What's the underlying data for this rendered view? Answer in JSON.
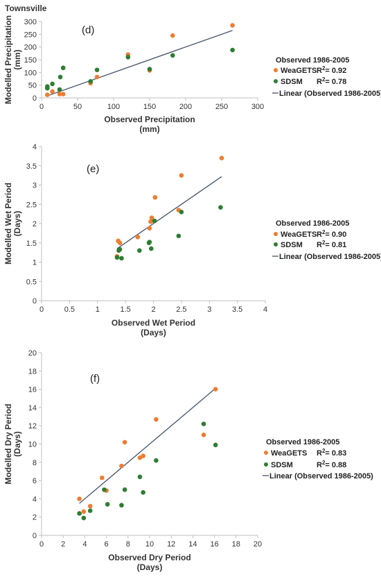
{
  "title": "Townsville",
  "colors": {
    "weagets": "#ED7D31",
    "sdsm": "#2E7D32",
    "linear": "#44546A",
    "axis": "#BFBFBF"
  },
  "chart_data": [
    {
      "type": "scatter",
      "panel_label": "(d)",
      "xlabel": "Observed Precipitation",
      "xlabel_unit": "(mm)",
      "ylabel": "Modelled Precipitation",
      "ylabel_unit": "(mm)",
      "xlim": [
        0,
        300
      ],
      "ylim": [
        0,
        300
      ],
      "xticks": [
        0,
        50,
        100,
        150,
        200,
        250,
        300
      ],
      "yticks": [
        0,
        50,
        100,
        150,
        200,
        250,
        300
      ],
      "legend": {
        "title": "Observed 1986-2005",
        "linear_label": "Linear (Observed 1986-2005)"
      },
      "series": [
        {
          "name": "WeaGETS",
          "r2": "0.92",
          "points": [
            [
              8,
              12
            ],
            [
              15,
              25
            ],
            [
              25,
              15
            ],
            [
              30,
              15
            ],
            [
              68,
              58
            ],
            [
              77,
              82
            ],
            [
              120,
              170
            ],
            [
              150,
              108
            ],
            [
              182,
              245
            ],
            [
              265,
              285
            ]
          ]
        },
        {
          "name": "SDSM",
          "r2": "0.78",
          "points": [
            [
              8,
              38
            ],
            [
              8,
              45
            ],
            [
              15,
              55
            ],
            [
              25,
              33
            ],
            [
              26,
              82
            ],
            [
              30,
              118
            ],
            [
              68,
              65
            ],
            [
              77,
              110
            ],
            [
              120,
              160
            ],
            [
              150,
              113
            ],
            [
              182,
              167
            ],
            [
              265,
              188
            ]
          ]
        }
      ],
      "trendline": [
        [
          8,
          8
        ],
        [
          265,
          265
        ]
      ]
    },
    {
      "type": "scatter",
      "panel_label": "(e)",
      "xlabel": "Observed Wet Period",
      "xlabel_unit": "(Days)",
      "ylabel": "Modelled Wet Period",
      "ylabel_unit": "(Days)",
      "xlim": [
        0,
        4
      ],
      "ylim": [
        0,
        4
      ],
      "xticks": [
        0,
        0.5,
        1,
        1.5,
        2,
        2.5,
        3,
        3.5,
        4
      ],
      "yticks": [
        0,
        0.5,
        1,
        1.5,
        2,
        2.5,
        3,
        3.5,
        4
      ],
      "legend": {
        "title": "Observed 1986-2005",
        "linear_label": "Linear (Observed 1986-2005)"
      },
      "series": [
        {
          "name": "WeaGETS",
          "r2": "0.90",
          "points": [
            [
              1.35,
              1.15
            ],
            [
              1.37,
              1.55
            ],
            [
              1.4,
              1.5
            ],
            [
              1.72,
              1.65
            ],
            [
              1.93,
              1.88
            ],
            [
              1.95,
              2.05
            ],
            [
              1.97,
              2.15
            ],
            [
              2.03,
              2.68
            ],
            [
              2.45,
              2.35
            ],
            [
              2.5,
              3.25
            ],
            [
              3.22,
              3.7
            ]
          ]
        },
        {
          "name": "SDSM",
          "r2": "0.81",
          "points": [
            [
              1.35,
              1.12
            ],
            [
              1.38,
              1.3
            ],
            [
              1.4,
              1.33
            ],
            [
              1.43,
              1.1
            ],
            [
              1.75,
              1.3
            ],
            [
              1.92,
              1.5
            ],
            [
              1.93,
              1.52
            ],
            [
              1.96,
              1.35
            ],
            [
              2.02,
              2.07
            ],
            [
              2.45,
              1.68
            ],
            [
              2.5,
              2.3
            ],
            [
              3.2,
              2.42
            ]
          ]
        }
      ],
      "trendline": [
        [
          1.35,
          1.35
        ],
        [
          3.22,
          3.22
        ]
      ]
    },
    {
      "type": "scatter",
      "panel_label": "(f)",
      "xlabel": "Observed Dry Period",
      "xlabel_unit": "(Days)",
      "ylabel": "Modelled Dry Period",
      "ylabel_unit": "(Days)",
      "xlim": [
        0,
        20
      ],
      "ylim": [
        0,
        20
      ],
      "xticks": [
        0,
        2,
        4,
        6,
        8,
        10,
        12,
        14,
        16,
        18,
        20
      ],
      "yticks": [
        0,
        2,
        4,
        6,
        8,
        10,
        12,
        14,
        16,
        18,
        20
      ],
      "legend": {
        "title": "Observed 1986-2005",
        "linear_label": "Linear (Observed 1986-2005)"
      },
      "series": [
        {
          "name": "WeaGETS",
          "r2": "0.83",
          "points": [
            [
              3.5,
              4.0
            ],
            [
              3.9,
              2.6
            ],
            [
              4.5,
              3.2
            ],
            [
              5.6,
              6.3
            ],
            [
              6.0,
              4.9
            ],
            [
              7.4,
              7.6
            ],
            [
              7.7,
              10.2
            ],
            [
              9.1,
              8.5
            ],
            [
              9.4,
              8.7
            ],
            [
              10.6,
              12.7
            ],
            [
              15.0,
              11.0
            ],
            [
              16.1,
              16.0
            ]
          ]
        },
        {
          "name": "SDSM",
          "r2": "0.88",
          "points": [
            [
              3.5,
              2.4
            ],
            [
              3.9,
              1.9
            ],
            [
              4.5,
              2.7
            ],
            [
              5.8,
              5.0
            ],
            [
              6.1,
              3.4
            ],
            [
              7.4,
              3.3
            ],
            [
              7.7,
              5.0
            ],
            [
              9.1,
              6.4
            ],
            [
              9.4,
              4.7
            ],
            [
              10.6,
              8.2
            ],
            [
              15.0,
              12.2
            ],
            [
              16.1,
              9.9
            ]
          ]
        }
      ],
      "trendline": [
        [
          3.5,
          3.5
        ],
        [
          16.1,
          16.1
        ]
      ]
    }
  ]
}
